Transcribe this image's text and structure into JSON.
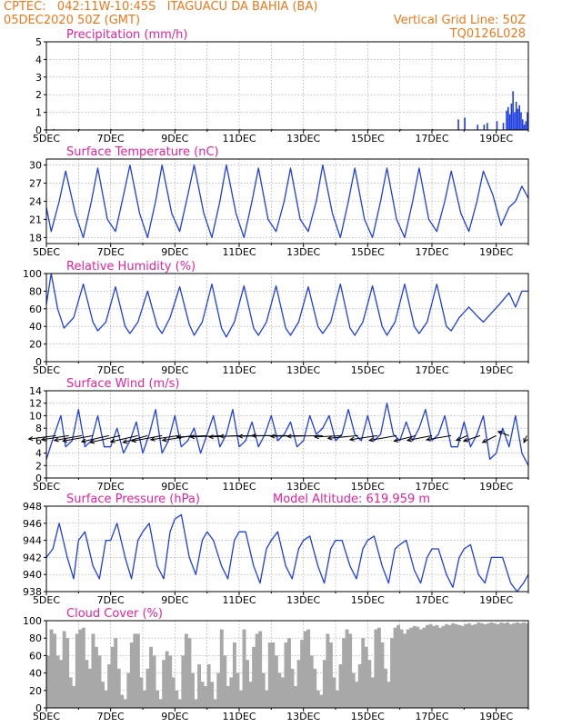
{
  "header": {
    "title_line1": "CPTEC:   042:11W-10:45S   ITAGUACU DA BAHIA (BA)",
    "title_line2": "05DEC2020 50Z (GMT)",
    "grid_note": "Vertical Grid Line: 50Z",
    "model_code": "TQ0126L028",
    "colors": {
      "header": "#e87a1e",
      "panel_title": "#e0259a",
      "series": "#1f3fe0",
      "cloud": "#a8a8a8",
      "vector": "#000000"
    }
  },
  "x_ticks": [
    "5DEC",
    "7DEC",
    "9DEC",
    "11DEC",
    "13DEC",
    "15DEC",
    "17DEC",
    "19DEC"
  ],
  "chart_data": [
    {
      "type": "bar",
      "title": "Precipitation (mm/h)",
      "ylim": [
        0,
        5
      ],
      "yticks": [
        0,
        1,
        2,
        3,
        4,
        5
      ],
      "color": "#1f3fe0",
      "x": [
        0.2,
        1.0,
        2.0,
        3.0,
        4.0,
        5.0,
        6.0,
        7.0,
        8.0,
        9.0,
        10.0,
        11.0,
        12.0,
        12.8,
        13.0,
        13.4,
        13.6,
        13.7,
        14.0,
        14.2,
        14.3,
        14.35,
        14.4,
        14.45,
        14.5,
        14.55,
        14.6,
        14.65,
        14.7,
        14.75,
        14.8,
        14.85,
        14.9,
        14.95
      ],
      "values": [
        0.05,
        0.05,
        0.05,
        0.05,
        0.05,
        0.05,
        0.05,
        0.05,
        0.05,
        0.05,
        0.05,
        0.05,
        0.05,
        0.6,
        0.7,
        0.3,
        0.3,
        0.4,
        0.5,
        0.4,
        1.1,
        1.3,
        0.9,
        1.5,
        2.2,
        1.0,
        1.6,
        1.2,
        1.4,
        1.0,
        0.6,
        0.3,
        0.5,
        1.0
      ]
    },
    {
      "type": "line",
      "title": "Surface Temperature (nC)",
      "ylim": [
        17,
        31
      ],
      "yticks": [
        18,
        21,
        24,
        27,
        30
      ],
      "color": "#1f3fe0",
      "x": [
        0,
        0.15,
        0.4,
        0.6,
        0.9,
        1.15,
        1.4,
        1.6,
        1.9,
        2.15,
        2.4,
        2.6,
        2.9,
        3.15,
        3.4,
        3.6,
        3.9,
        4.15,
        4.4,
        4.6,
        4.9,
        5.15,
        5.4,
        5.6,
        5.9,
        6.15,
        6.4,
        6.6,
        6.9,
        7.15,
        7.4,
        7.6,
        7.9,
        8.15,
        8.4,
        8.6,
        8.9,
        9.15,
        9.4,
        9.6,
        9.9,
        10.15,
        10.4,
        10.6,
        10.9,
        11.15,
        11.4,
        11.6,
        11.9,
        12.15,
        12.4,
        12.6,
        12.9,
        13.15,
        13.4,
        13.6,
        13.9,
        14.15,
        14.4,
        14.6,
        14.8,
        15.0
      ],
      "values": [
        23,
        19,
        24,
        29,
        22,
        18,
        24,
        29.5,
        21,
        19,
        25,
        30,
        22,
        18,
        24,
        30,
        22,
        19,
        25,
        30,
        22,
        18,
        24,
        30,
        22,
        18,
        24,
        29.5,
        21,
        19,
        24,
        29.5,
        21,
        19,
        24,
        30,
        22,
        18,
        24,
        29.5,
        21,
        18,
        24,
        29.5,
        21,
        18,
        24,
        29.5,
        21,
        19,
        24,
        29,
        22,
        19,
        24,
        29,
        25,
        20,
        23,
        24,
        26.5,
        24.5
      ]
    },
    {
      "type": "line",
      "title": "Relative Humidity (%)",
      "ylim": [
        0,
        100
      ],
      "yticks": [
        0,
        20,
        40,
        60,
        80,
        100
      ],
      "color": "#1f3fe0",
      "x": [
        0,
        0.15,
        0.35,
        0.55,
        0.85,
        1.15,
        1.45,
        1.6,
        1.85,
        2.15,
        2.45,
        2.6,
        2.85,
        3.15,
        3.45,
        3.6,
        3.85,
        4.15,
        4.45,
        4.6,
        4.85,
        5.15,
        5.45,
        5.6,
        5.85,
        6.15,
        6.45,
        6.6,
        6.85,
        7.15,
        7.45,
        7.6,
        7.85,
        8.15,
        8.45,
        8.6,
        8.85,
        9.15,
        9.45,
        9.6,
        9.85,
        10.15,
        10.45,
        10.6,
        10.85,
        11.15,
        11.45,
        11.6,
        11.85,
        12.15,
        12.45,
        12.6,
        12.85,
        13.15,
        13.4,
        13.6,
        13.85,
        14.1,
        14.4,
        14.6,
        14.8,
        15.0
      ],
      "values": [
        65,
        100,
        60,
        38,
        50,
        88,
        45,
        35,
        45,
        85,
        40,
        32,
        45,
        80,
        40,
        32,
        50,
        85,
        42,
        30,
        45,
        88,
        38,
        28,
        45,
        86,
        38,
        30,
        45,
        86,
        38,
        30,
        45,
        85,
        40,
        32,
        45,
        88,
        38,
        30,
        45,
        86,
        40,
        30,
        45,
        88,
        40,
        32,
        45,
        88,
        40,
        35,
        50,
        62,
        52,
        45,
        55,
        65,
        78,
        62,
        80,
        80
      ]
    },
    {
      "type": "line",
      "title": "Surface Wind (m/s)",
      "ylim": [
        0,
        14
      ],
      "yticks": [
        0,
        2,
        4,
        6,
        8,
        10,
        12,
        14
      ],
      "color": "#1f3fe0",
      "x": [
        0,
        0.25,
        0.45,
        0.6,
        0.8,
        1.0,
        1.2,
        1.4,
        1.6,
        1.8,
        2.0,
        2.2,
        2.4,
        2.6,
        2.8,
        3.0,
        3.2,
        3.4,
        3.6,
        3.8,
        4.0,
        4.2,
        4.4,
        4.6,
        4.8,
        5.0,
        5.2,
        5.4,
        5.6,
        5.8,
        6.0,
        6.2,
        6.4,
        6.6,
        6.8,
        7.0,
        7.2,
        7.4,
        7.6,
        7.8,
        8.0,
        8.2,
        8.4,
        8.6,
        8.8,
        9.0,
        9.2,
        9.4,
        9.6,
        9.8,
        10.0,
        10.2,
        10.4,
        10.6,
        10.8,
        11.0,
        11.2,
        11.4,
        11.6,
        11.8,
        12.0,
        12.2,
        12.4,
        12.6,
        12.8,
        13.0,
        13.2,
        13.4,
        13.6,
        13.8,
        14.0,
        14.2,
        14.4,
        14.6,
        14.8,
        15.0
      ],
      "values": [
        3,
        7,
        10,
        5,
        6,
        11,
        5,
        6,
        10,
        5,
        5,
        8,
        4,
        6,
        9,
        4,
        7,
        11,
        4,
        6,
        10,
        5,
        6,
        8,
        4,
        7,
        10,
        5,
        7,
        11,
        5,
        6,
        9,
        5,
        7,
        10,
        6,
        7,
        9,
        5,
        6,
        10,
        7,
        8,
        10,
        6,
        7,
        11,
        7,
        6,
        10,
        6,
        7,
        12,
        7,
        6,
        9,
        6,
        8,
        11,
        6,
        7,
        10,
        5,
        5,
        9,
        5,
        7,
        10,
        3,
        4,
        8,
        5,
        10,
        4,
        2
      ],
      "vectors": [
        {
          "x": 0.3,
          "u": 1.0,
          "v": 0.25
        },
        {
          "x": 0.7,
          "u": 1.0,
          "v": 0.3
        },
        {
          "x": 1.1,
          "u": 1.0,
          "v": 0.35
        },
        {
          "x": 1.45,
          "u": 1.1,
          "v": 0.4
        },
        {
          "x": 1.95,
          "u": 1.0,
          "v": 0.45
        },
        {
          "x": 2.3,
          "u": 1.1,
          "v": 0.5
        },
        {
          "x": 2.85,
          "u": 1.0,
          "v": 0.45
        },
        {
          "x": 3.15,
          "u": 0.9,
          "v": 0.5
        },
        {
          "x": 3.6,
          "u": 1.1,
          "v": 0.4
        },
        {
          "x": 4.1,
          "u": 1.0,
          "v": 0.3
        },
        {
          "x": 4.55,
          "u": 1.1,
          "v": 0.35
        },
        {
          "x": 5.0,
          "u": 1.1,
          "v": 0.1
        },
        {
          "x": 5.5,
          "u": 1.2,
          "v": 0.1
        },
        {
          "x": 6.0,
          "u": 1.1,
          "v": 0.1
        },
        {
          "x": 6.5,
          "u": 1.3,
          "v": 0.05
        },
        {
          "x": 7.0,
          "u": 1.2,
          "v": 0.05
        },
        {
          "x": 7.5,
          "u": 1.3,
          "v": 0.0
        },
        {
          "x": 8.0,
          "u": 1.2,
          "v": 0.05
        },
        {
          "x": 8.6,
          "u": 1.3,
          "v": 0.05
        },
        {
          "x": 9.2,
          "u": 1.0,
          "v": 0.1
        },
        {
          "x": 9.7,
          "u": 1.1,
          "v": 0.2
        },
        {
          "x": 10.3,
          "u": 1.0,
          "v": 0.3
        },
        {
          "x": 10.9,
          "u": 1.0,
          "v": 0.35
        },
        {
          "x": 11.5,
          "u": 0.8,
          "v": 0.4
        },
        {
          "x": 12.0,
          "u": 0.9,
          "v": 0.35
        },
        {
          "x": 12.6,
          "u": 0.9,
          "v": 0.3
        },
        {
          "x": 13.1,
          "u": 0.4,
          "v": 0.35
        },
        {
          "x": 13.5,
          "u": 0.6,
          "v": 0.4
        },
        {
          "x": 14.0,
          "u": 0.5,
          "v": 0.5
        },
        {
          "x": 14.4,
          "u": 0.4,
          "v": -0.3
        },
        {
          "x": 14.95,
          "u": 0.1,
          "v": 0.5
        }
      ]
    },
    {
      "type": "line",
      "title": "Surface Pressure (hPa)",
      "annotation": "Model Altitude: 619.959 m",
      "ylim": [
        938,
        948
      ],
      "yticks": [
        938,
        940,
        942,
        944,
        946,
        948
      ],
      "color": "#1f3fe0",
      "x": [
        0,
        0.2,
        0.4,
        0.65,
        0.85,
        1.0,
        1.2,
        1.45,
        1.65,
        1.85,
        2.0,
        2.2,
        2.45,
        2.65,
        2.85,
        3.0,
        3.2,
        3.45,
        3.65,
        3.85,
        4.0,
        4.2,
        4.45,
        4.65,
        4.85,
        5.0,
        5.2,
        5.45,
        5.65,
        5.85,
        6.0,
        6.2,
        6.45,
        6.65,
        6.85,
        7.0,
        7.2,
        7.45,
        7.65,
        7.85,
        8.0,
        8.2,
        8.45,
        8.65,
        8.85,
        9.0,
        9.2,
        9.45,
        9.65,
        9.85,
        10.0,
        10.2,
        10.45,
        10.65,
        10.85,
        11.0,
        11.2,
        11.45,
        11.65,
        11.85,
        12.0,
        12.2,
        12.45,
        12.65,
        12.85,
        13.0,
        13.2,
        13.45,
        13.65,
        13.85,
        14.0,
        14.2,
        14.45,
        14.65,
        14.85,
        15.0
      ],
      "values": [
        942,
        943,
        946,
        942,
        939.5,
        944,
        945,
        941,
        939.5,
        944,
        944,
        946,
        942,
        939.5,
        944,
        945,
        946,
        941,
        939.5,
        945,
        946.5,
        947,
        942,
        940,
        944,
        945,
        944,
        941,
        939.5,
        944,
        945,
        945,
        941,
        939,
        943,
        944,
        945,
        941,
        939.5,
        943,
        944,
        944.5,
        941,
        939,
        943,
        944,
        944,
        941,
        939.5,
        943,
        944,
        944.5,
        941,
        939,
        943,
        943.5,
        944,
        940.5,
        939,
        942,
        943,
        943,
        940,
        938.5,
        942,
        943,
        943.5,
        940,
        939,
        942,
        942,
        942,
        939,
        938,
        939,
        940
      ]
    },
    {
      "type": "bar",
      "title": "Cloud Cover (%)",
      "ylim": [
        0,
        100
      ],
      "yticks": [
        0,
        20,
        40,
        60,
        80,
        100
      ],
      "color": "#a8a8a8",
      "x": [
        0.0,
        0.1,
        0.2,
        0.3,
        0.4,
        0.5,
        0.6,
        0.7,
        0.8,
        0.9,
        1.0,
        1.1,
        1.2,
        1.3,
        1.4,
        1.5,
        1.6,
        1.7,
        1.8,
        1.9,
        2.0,
        2.1,
        2.2,
        2.3,
        2.4,
        2.5,
        2.6,
        2.7,
        2.8,
        2.9,
        3.0,
        3.1,
        3.2,
        3.3,
        3.4,
        3.5,
        3.6,
        3.7,
        3.8,
        3.9,
        4.0,
        4.1,
        4.2,
        4.3,
        4.4,
        4.5,
        4.6,
        4.7,
        4.8,
        4.9,
        5.0,
        5.1,
        5.2,
        5.3,
        5.4,
        5.5,
        5.6,
        5.7,
        5.8,
        5.9,
        6.0,
        6.1,
        6.2,
        6.3,
        6.4,
        6.5,
        6.6,
        6.7,
        6.8,
        6.9,
        7.0,
        7.1,
        7.2,
        7.3,
        7.4,
        7.5,
        7.6,
        7.7,
        7.8,
        7.9,
        8.0,
        8.1,
        8.2,
        8.3,
        8.4,
        8.5,
        8.6,
        8.7,
        8.8,
        8.9,
        9.0,
        9.1,
        9.2,
        9.3,
        9.4,
        9.5,
        9.6,
        9.7,
        9.8,
        9.9,
        10.0,
        10.1,
        10.2,
        10.3,
        10.4,
        10.5,
        10.6,
        10.7,
        10.8,
        10.9,
        11.0,
        11.1,
        11.2,
        11.3,
        11.4,
        11.5,
        11.6,
        11.7,
        11.8,
        11.9,
        12.0,
        12.1,
        12.2,
        12.3,
        12.4,
        12.5,
        12.6,
        12.7,
        12.8,
        12.9,
        13.0,
        13.1,
        13.2,
        13.3,
        13.4,
        13.5,
        13.6,
        13.7,
        13.8,
        13.9,
        14.0,
        14.1,
        14.2,
        14.3,
        14.4,
        14.5,
        14.6,
        14.7,
        14.8,
        14.9
      ],
      "values": [
        60,
        90,
        85,
        60,
        55,
        88,
        80,
        35,
        25,
        85,
        90,
        92,
        55,
        45,
        85,
        70,
        60,
        30,
        20,
        50,
        70,
        80,
        45,
        15,
        10,
        40,
        75,
        85,
        85,
        35,
        20,
        45,
        70,
        60,
        20,
        10,
        55,
        65,
        60,
        35,
        20,
        10,
        60,
        85,
        80,
        40,
        10,
        50,
        30,
        25,
        50,
        30,
        10,
        40,
        90,
        60,
        25,
        35,
        75,
        40,
        20,
        90,
        55,
        30,
        70,
        85,
        88,
        40,
        20,
        75,
        75,
        60,
        40,
        35,
        75,
        80,
        45,
        25,
        55,
        78,
        88,
        90,
        60,
        45,
        20,
        15,
        55,
        85,
        75,
        35,
        20,
        50,
        80,
        90,
        85,
        40,
        30,
        50,
        80,
        70,
        55,
        35,
        90,
        92,
        75,
        45,
        30,
        80,
        92,
        95,
        90,
        85,
        90,
        92,
        94,
        93,
        90,
        92,
        95,
        96,
        94,
        95,
        92,
        94,
        96,
        95,
        97,
        96,
        95,
        94,
        96,
        97,
        95,
        96,
        98,
        97,
        96,
        97,
        98,
        97,
        96,
        98,
        97,
        98,
        96,
        97,
        98,
        97,
        98,
        97
      ]
    }
  ]
}
